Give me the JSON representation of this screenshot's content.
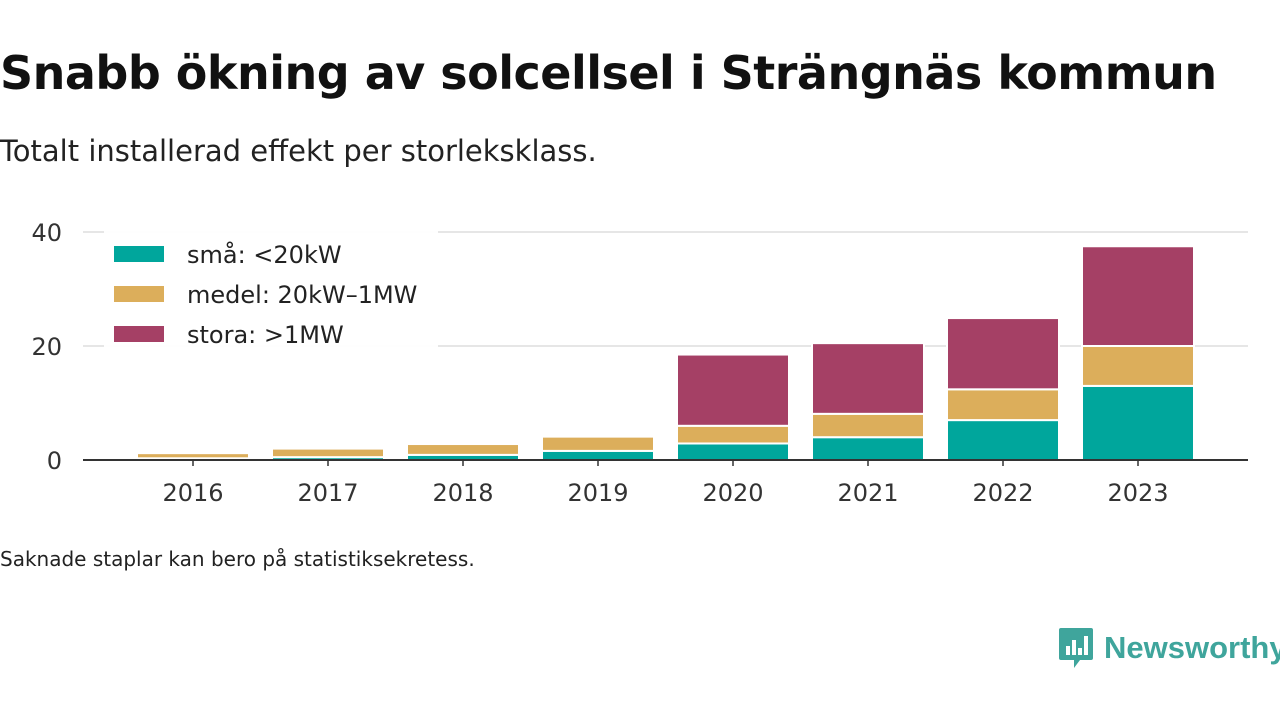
{
  "title": "Snabb ökning av solcellsel i Strängnäs kommun",
  "subtitle": "Totalt installerad effekt per storleksklass.",
  "note": "Saknade staplar kan bero på statistiksekretess.",
  "brand": {
    "name": "Newsworthy",
    "icon": "newsworthy-logo-icon",
    "color": "#3fa59c"
  },
  "chart_data": {
    "type": "bar",
    "stacked": true,
    "categories": [
      "2016",
      "2017",
      "2018",
      "2019",
      "2020",
      "2021",
      "2022",
      "2023"
    ],
    "series": [
      {
        "name": "små: <20kW",
        "color": "#00a69c",
        "values": [
          0.3,
          0.5,
          0.9,
          1.6,
          2.9,
          4.0,
          7.0,
          13.0
        ]
      },
      {
        "name": "medel: 20kW–1MW",
        "color": "#dcae5b",
        "values": [
          0.9,
          1.5,
          1.9,
          2.5,
          3.1,
          4.1,
          5.4,
          7.0
        ]
      },
      {
        "name": "stora: >1MW",
        "color": "#a54065",
        "values": [
          0,
          0,
          0,
          0,
          12.5,
          12.4,
          12.5,
          17.5
        ]
      }
    ],
    "yticks": [
      0,
      20,
      40
    ],
    "ylim": [
      0,
      40
    ],
    "grid": true,
    "legend": "top-left"
  }
}
